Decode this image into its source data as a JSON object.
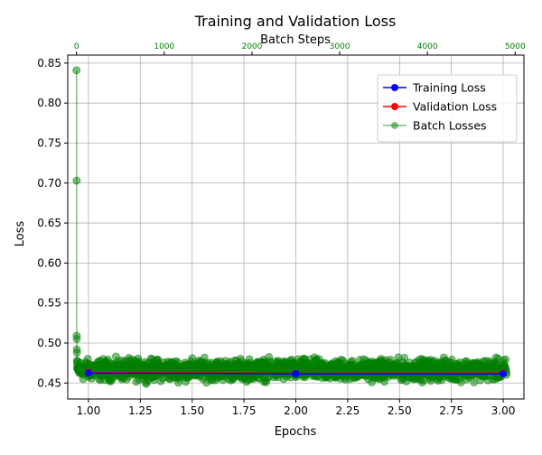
{
  "chart_data": {
    "type": "line",
    "title": "Training and Validation Loss",
    "xlabel": "Epochs",
    "ylabel": "Loss",
    "secondary_xlabel": "Batch Steps",
    "xlim": [
      0.9,
      3.1
    ],
    "ylim": [
      0.43,
      0.86
    ],
    "secondary_xlim": [
      -100,
      5100
    ],
    "x_ticks": [
      "1.00",
      "1.25",
      "1.50",
      "1.75",
      "2.00",
      "2.25",
      "2.50",
      "2.75",
      "3.00"
    ],
    "y_ticks": [
      "0.45",
      "0.50",
      "0.55",
      "0.60",
      "0.65",
      "0.70",
      "0.75",
      "0.80",
      "0.85"
    ],
    "secondary_x_ticks": [
      "0",
      "1000",
      "2000",
      "3000",
      "4000",
      "5000"
    ],
    "grid": true,
    "legend_position": "upper-right",
    "series": [
      {
        "name": "Training Loss",
        "color": "#0000ff",
        "x": [
          1,
          2,
          3
        ],
        "y": [
          0.4625,
          0.4615,
          0.4615
        ]
      },
      {
        "name": "Validation Loss",
        "color": "#ff0000",
        "x": [
          1,
          2,
          3
        ],
        "y": [
          0.4635,
          0.462,
          0.4625
        ]
      },
      {
        "name": "Batch Losses",
        "color": "#008000",
        "opacity": 0.5,
        "batch_steps": [
          0,
          1,
          2,
          3,
          4,
          5,
          6,
          7,
          8,
          10,
          20,
          40,
          80,
          150,
          300,
          600,
          1000,
          1500,
          2000,
          2500,
          3000,
          3500,
          4000,
          4500,
          4900
        ],
        "y": [
          0.841,
          0.703,
          0.509,
          0.505,
          0.492,
          0.488,
          0.478,
          0.475,
          0.47,
          0.468,
          0.466,
          0.465,
          0.463,
          0.461,
          0.464,
          0.462,
          0.463,
          0.462,
          0.461,
          0.462,
          0.462,
          0.461,
          0.462,
          0.463,
          0.463
        ],
        "noise_range": [
          0.448,
          0.485
        ]
      }
    ]
  }
}
